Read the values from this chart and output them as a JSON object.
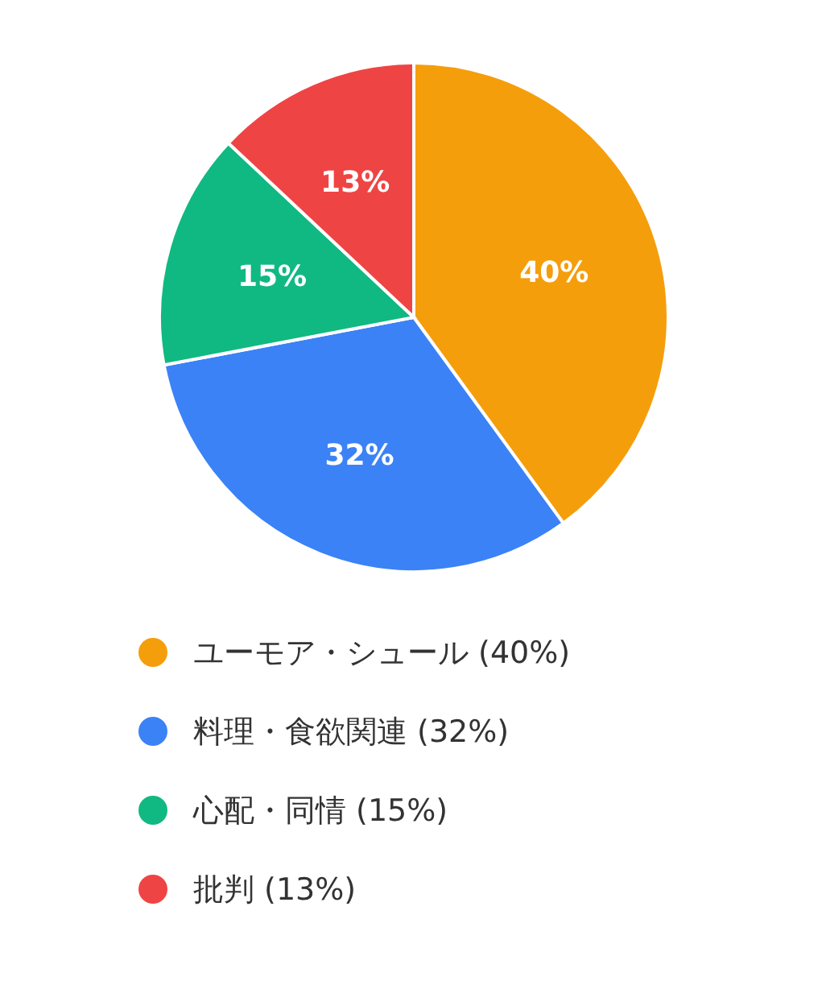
{
  "chart_data": {
    "type": "pie",
    "categories": [
      "ユーモア・シュール (40%)",
      "料理・食欲関連 (32%)",
      "心配・同情 (15%)",
      "批判 (13%)"
    ],
    "values": [
      40,
      32,
      15,
      13
    ],
    "colors": [
      "#f59e0b",
      "#3b82f6",
      "#10b981",
      "#ef4444"
    ],
    "value_labels": [
      "40%",
      "32%",
      "15%",
      "13%"
    ],
    "legend": "bottom"
  }
}
